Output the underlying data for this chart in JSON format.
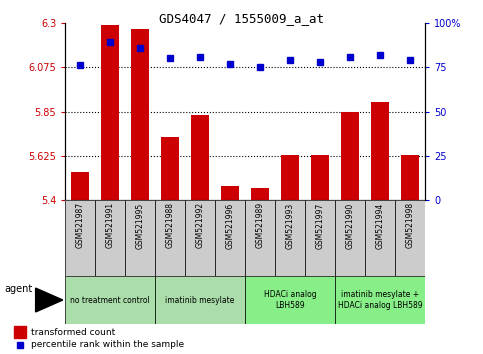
{
  "title": "GDS4047 / 1555009_a_at",
  "samples": [
    "GSM521987",
    "GSM521991",
    "GSM521995",
    "GSM521988",
    "GSM521992",
    "GSM521996",
    "GSM521989",
    "GSM521993",
    "GSM521997",
    "GSM521990",
    "GSM521994",
    "GSM521998"
  ],
  "bar_values": [
    5.54,
    6.29,
    6.27,
    5.72,
    5.83,
    5.47,
    5.46,
    5.63,
    5.63,
    5.85,
    5.9,
    5.63
  ],
  "dot_values": [
    76,
    89,
    86,
    80,
    81,
    77,
    75,
    79,
    78,
    81,
    82,
    79
  ],
  "bar_color": "#cc0000",
  "dot_color": "#0000cc",
  "ylim_left": [
    5.4,
    6.3
  ],
  "ylim_right": [
    0,
    100
  ],
  "yticks_left": [
    5.4,
    5.625,
    5.85,
    6.075,
    6.3
  ],
  "yticks_right": [
    0,
    25,
    50,
    75,
    100
  ],
  "ytick_labels_left": [
    "5.4",
    "5.625",
    "5.85",
    "6.075",
    "6.3"
  ],
  "ytick_labels_right": [
    "0",
    "25",
    "50",
    "75",
    "100%"
  ],
  "hlines": [
    5.625,
    5.85,
    6.075
  ],
  "agent_groups": [
    {
      "label": "no treatment control",
      "start": 0,
      "end": 3,
      "color": "#aaddaa"
    },
    {
      "label": "imatinib mesylate",
      "start": 3,
      "end": 6,
      "color": "#aaddaa"
    },
    {
      "label": "HDACi analog\nLBH589",
      "start": 6,
      "end": 9,
      "color": "#88ee88"
    },
    {
      "label": "imatinib mesylate +\nHDACi analog LBH589",
      "start": 9,
      "end": 12,
      "color": "#88ee88"
    }
  ],
  "agent_label": "agent",
  "legend_bar_label": "transformed count",
  "legend_dot_label": "percentile rank within the sample",
  "left_axis_color": "#cc0000",
  "right_axis_color": "#0000cc",
  "background_color": "#ffffff",
  "sample_box_color": "#cccccc",
  "border_color": "#000000"
}
